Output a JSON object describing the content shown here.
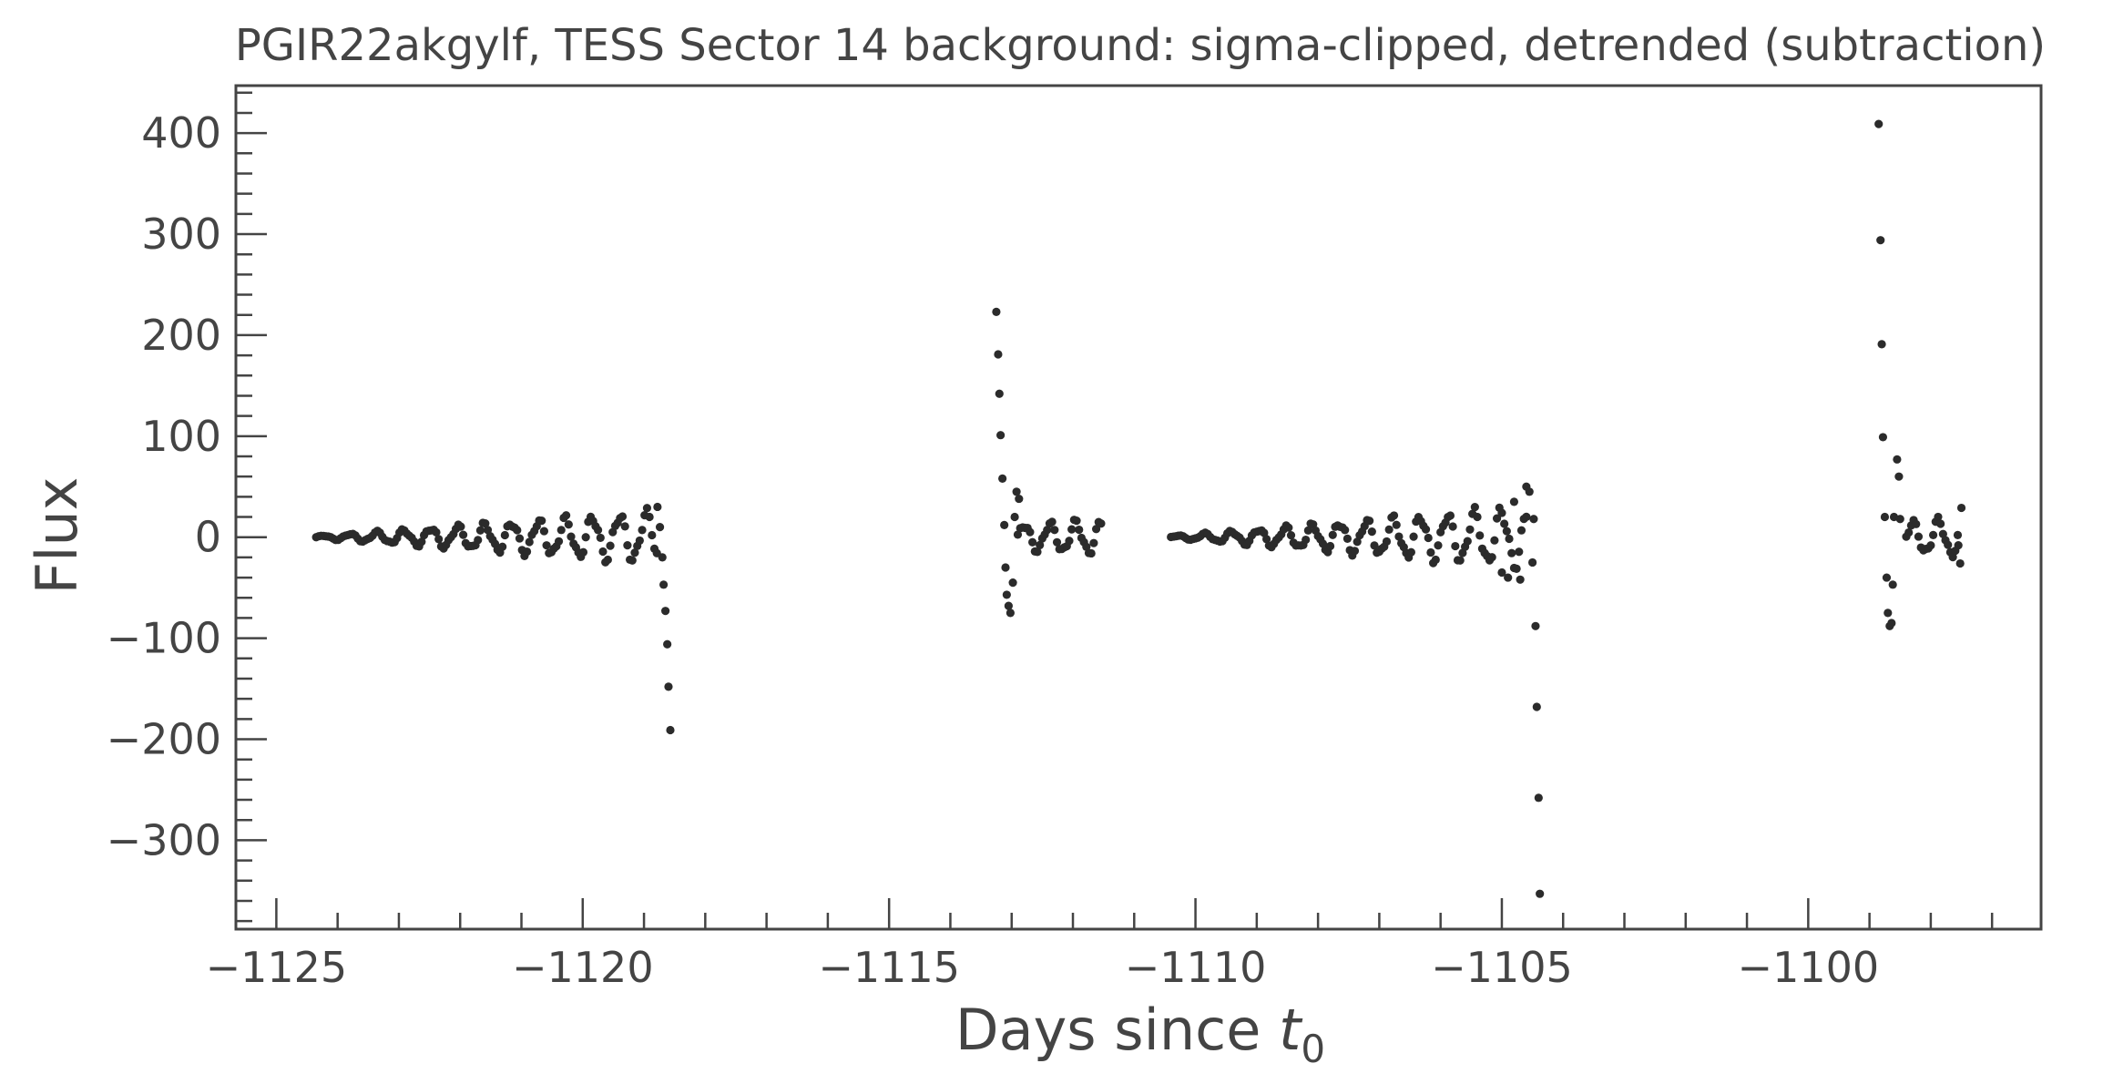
{
  "chart_data": {
    "type": "scatter",
    "title": "PGIR22akgylf, TESS Sector 14 background: sigma-clipped, detrended (subtraction)",
    "xlabel": "Days since ",
    "xlabel_math": "t",
    "xlabel_sub": "0",
    "ylabel": "Flux",
    "xlim": [
      -1125.66,
      -1096.2
    ],
    "ylim": [
      -388,
      447
    ],
    "xticks": [
      -1125,
      -1120,
      -1115,
      -1110,
      -1105,
      -1100
    ],
    "xtick_labels": [
      "−1125",
      "−1120",
      "−1115",
      "−1110",
      "−1105",
      "−1100"
    ],
    "yticks": [
      -300,
      -200,
      -100,
      0,
      100,
      200,
      300,
      400
    ],
    "ytick_labels": [
      "−300",
      "−200",
      "−100",
      "0",
      "100",
      "200",
      "300",
      "400"
    ],
    "grid": false,
    "marker_color": "#2b2b2b",
    "segments": [
      {
        "x_start": -1124.35,
        "x_end": -1118.78,
        "step": 0.04,
        "amp_start": 1,
        "amp_end": 24,
        "period": 0.44
      },
      {
        "x_start": -1112.9,
        "x_end": -1111.55,
        "step": 0.04,
        "amp_start": 12,
        "amp_end": 16,
        "period": 0.42
      },
      {
        "x_start": -1110.4,
        "x_end": -1104.6,
        "step": 0.04,
        "amp_start": 1,
        "amp_end": 28,
        "period": 0.44
      },
      {
        "x_start": -1098.4,
        "x_end": -1097.55,
        "step": 0.04,
        "amp_start": 14,
        "amp_end": 18,
        "period": 0.42
      }
    ],
    "extra_points": [
      {
        "x": -1118.78,
        "y": 30
      },
      {
        "x": -1118.74,
        "y": 10
      },
      {
        "x": -1118.7,
        "y": -20
      },
      {
        "x": -1118.68,
        "y": -47
      },
      {
        "x": -1118.65,
        "y": -73
      },
      {
        "x": -1118.62,
        "y": -106
      },
      {
        "x": -1118.6,
        "y": -148
      },
      {
        "x": -1118.57,
        "y": -191
      },
      {
        "x": -1113.25,
        "y": 223
      },
      {
        "x": -1113.22,
        "y": 181
      },
      {
        "x": -1113.2,
        "y": 142
      },
      {
        "x": -1113.18,
        "y": 101
      },
      {
        "x": -1113.15,
        "y": 58
      },
      {
        "x": -1113.12,
        "y": 12
      },
      {
        "x": -1113.1,
        "y": -30
      },
      {
        "x": -1113.08,
        "y": -57
      },
      {
        "x": -1113.05,
        "y": -68
      },
      {
        "x": -1113.02,
        "y": -75
      },
      {
        "x": -1112.98,
        "y": -45
      },
      {
        "x": -1112.95,
        "y": 20
      },
      {
        "x": -1112.92,
        "y": 45
      },
      {
        "x": -1112.88,
        "y": 38
      },
      {
        "x": -1105.0,
        "y": -35
      },
      {
        "x": -1104.9,
        "y": -40
      },
      {
        "x": -1104.8,
        "y": 35
      },
      {
        "x": -1104.7,
        "y": -42
      },
      {
        "x": -1104.6,
        "y": 50
      },
      {
        "x": -1104.55,
        "y": 45
      },
      {
        "x": -1104.5,
        "y": -25
      },
      {
        "x": -1104.48,
        "y": 18
      },
      {
        "x": -1104.45,
        "y": -88
      },
      {
        "x": -1104.43,
        "y": -168
      },
      {
        "x": -1104.4,
        "y": -258
      },
      {
        "x": -1104.38,
        "y": -353
      },
      {
        "x": -1098.85,
        "y": 409
      },
      {
        "x": -1098.82,
        "y": 294
      },
      {
        "x": -1098.8,
        "y": 191
      },
      {
        "x": -1098.78,
        "y": 99
      },
      {
        "x": -1098.75,
        "y": 20
      },
      {
        "x": -1098.72,
        "y": -40
      },
      {
        "x": -1098.7,
        "y": -75
      },
      {
        "x": -1098.67,
        "y": -88
      },
      {
        "x": -1098.64,
        "y": -85
      },
      {
        "x": -1098.62,
        "y": -47
      },
      {
        "x": -1098.6,
        "y": 20
      },
      {
        "x": -1098.55,
        "y": 77
      },
      {
        "x": -1098.52,
        "y": 60
      },
      {
        "x": -1098.5,
        "y": 18
      },
      {
        "x": -1097.5,
        "y": 29
      },
      {
        "x": -1097.52,
        "y": -26
      },
      {
        "x": -1097.55,
        "y": -8
      }
    ]
  }
}
